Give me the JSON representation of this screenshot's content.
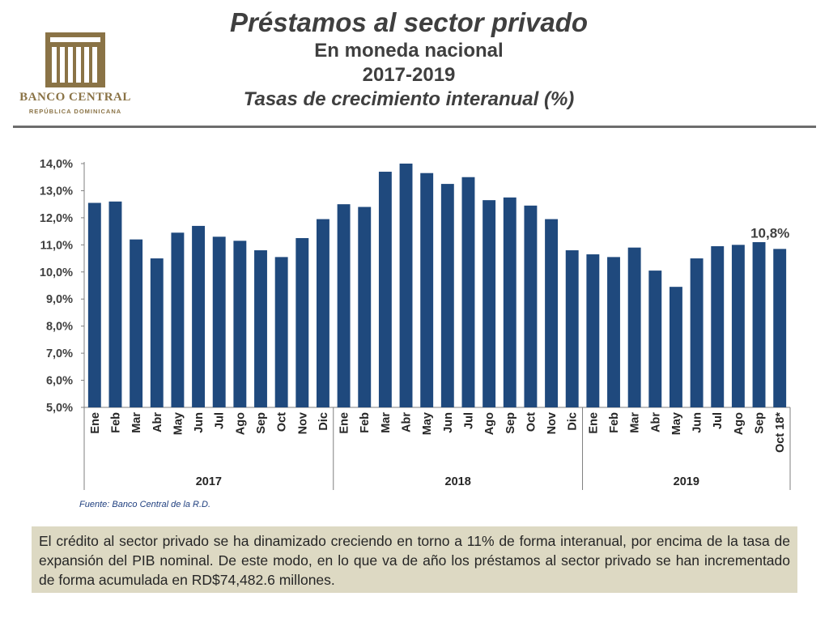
{
  "header": {
    "title": "Préstamos al sector privado",
    "subtitle1": "En moneda nacional",
    "subtitle2": "2017-2019",
    "subtitle3": "Tasas de crecimiento interanual (%)"
  },
  "logo": {
    "name": "BANCO CENTRAL",
    "subname": "REPÚBLICA DOMINICANA",
    "color": "#8a7346"
  },
  "chart_data": {
    "type": "bar",
    "bar_color": "#1f497d",
    "ylim": [
      5.0,
      14.0
    ],
    "y_ticks": [
      "14,0%",
      "13,0%",
      "12,0%",
      "11,0%",
      "10,0%",
      "9,0%",
      "8,0%",
      "7,0%",
      "6,0%",
      "5,0%"
    ],
    "categories": [
      "Ene",
      "Feb",
      "Mar",
      "Abr",
      "May",
      "Jun",
      "Jul",
      "Ago",
      "Sep",
      "Oct",
      "Nov",
      "Dic",
      "Ene",
      "Feb",
      "Mar",
      "Abr",
      "May",
      "Jun",
      "Jul",
      "Ago",
      "Sep",
      "Oct",
      "Nov",
      "Dic",
      "Ene",
      "Feb",
      "Mar",
      "Abr",
      "May",
      "Jun",
      "Jul",
      "Ago",
      "Sep",
      "Oct 18*"
    ],
    "values": [
      12.55,
      12.6,
      11.2,
      10.5,
      11.45,
      11.7,
      11.3,
      11.15,
      10.8,
      10.55,
      11.25,
      11.95,
      12.5,
      12.4,
      13.7,
      14.0,
      13.65,
      13.25,
      13.5,
      12.65,
      12.75,
      12.45,
      11.95,
      10.8,
      10.65,
      10.55,
      10.9,
      10.05,
      9.45,
      10.5,
      10.95,
      11.0,
      11.1,
      10.85
    ],
    "groups": [
      {
        "label": "2017",
        "count": 12
      },
      {
        "label": "2018",
        "count": 12
      },
      {
        "label": "2019",
        "count": 10
      }
    ],
    "annotation": "10,8%"
  },
  "source": "Fuente: Banco Central de la R.D.",
  "note": "El crédito al sector privado se ha dinamizado creciendo en torno a 11% de forma interanual, por encima de la tasa de expansión del PIB nominal. De este modo, en lo que va de año los préstamos al sector privado se han incrementado de forma acumulada en RD$74,482.6 millones."
}
